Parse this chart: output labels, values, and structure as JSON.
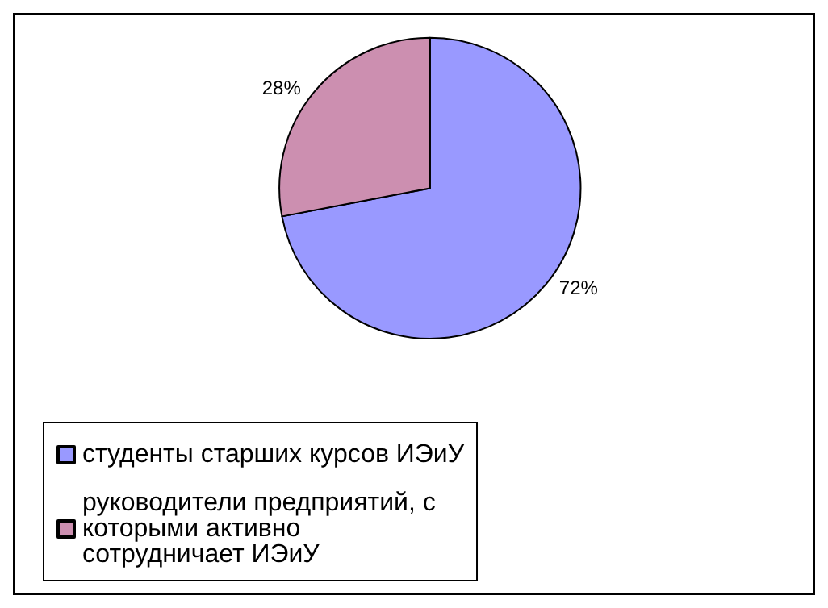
{
  "chart_data": {
    "type": "pie",
    "categories": [
      "студенты старших курсов ИЭиУ",
      "руководители предприятий, с которыми активно сотрудничает ИЭиУ"
    ],
    "values": [
      72,
      28
    ],
    "colors": [
      "#9999ff",
      "#cc8fb0"
    ],
    "value_labels": [
      "72%",
      "28%"
    ],
    "legend": "bottom"
  }
}
